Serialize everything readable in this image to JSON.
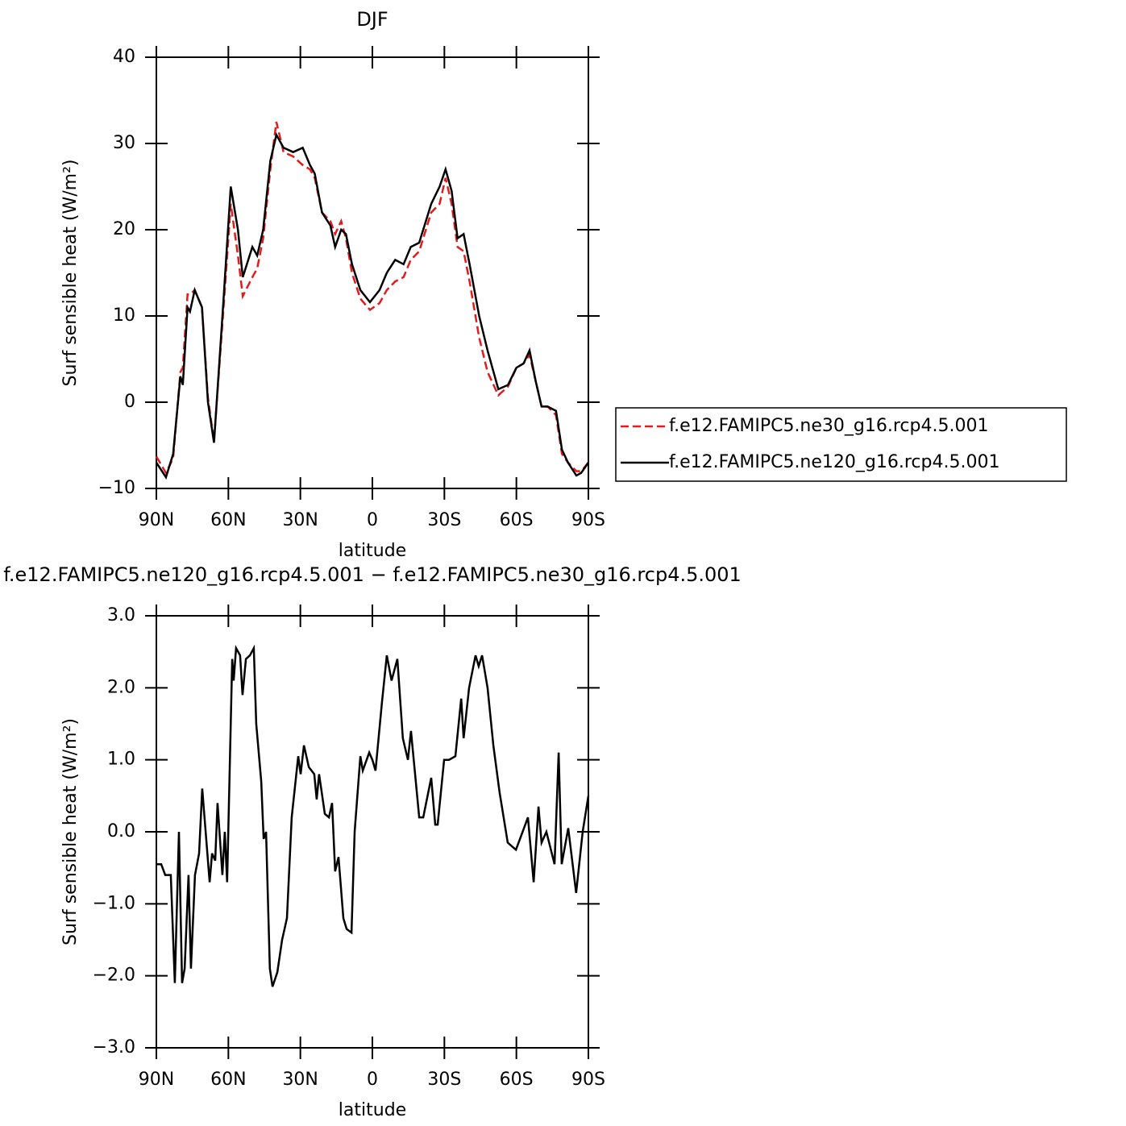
{
  "chart_data": [
    {
      "type": "line",
      "title": "DJF",
      "xlabel": "latitude",
      "ylabel": "Surf sensible heat (W/m²)",
      "x": [
        90,
        86,
        83,
        80,
        79,
        77,
        76,
        74,
        71,
        68.5,
        66,
        62,
        59,
        56,
        54,
        50,
        48,
        45.5,
        42.5,
        40,
        37,
        33,
        29,
        26,
        24,
        21,
        17.5,
        15.5,
        13,
        11,
        8.5,
        5,
        1,
        -3,
        -6,
        -9.5,
        -13,
        -16,
        -19.5,
        -24.5,
        -28,
        -30.5,
        -33,
        -35.5,
        -38,
        -40.5,
        -44.5,
        -48,
        -52.5,
        -56.5,
        -60,
        -63,
        -65.5,
        -68,
        -70.5,
        -73,
        -76.5,
        -79,
        -81.5,
        -85,
        -87,
        -90
      ],
      "series": [
        {
          "name": "f.e12.FAMIPC5.ne30_g16.rcp4.5.001",
          "color": "#e41a1c",
          "dash": true,
          "values": [
            -6.3,
            -8.2,
            -6.5,
            3.5,
            4,
            12.5,
            12.5,
            13,
            11,
            0.5,
            -4.5,
            11,
            23,
            17,
            12.3,
            14.5,
            15.5,
            19,
            27,
            32.5,
            29,
            28.5,
            27.5,
            27,
            26,
            22,
            21,
            19.5,
            21,
            19,
            15,
            12,
            10.7,
            11.5,
            13,
            14,
            14.5,
            16.5,
            17.5,
            22,
            23,
            26,
            23,
            18,
            17.5,
            14,
            7.5,
            3.5,
            0.8,
            1.8,
            4,
            4.5,
            5.5,
            2.5,
            -0.5,
            -0.5,
            -1.5,
            -6,
            -7,
            -8,
            -8,
            -7
          ]
        },
        {
          "name": "f.e12.FAMIPC5.ne120_g16.rcp4.5.001",
          "color": "#000000",
          "dash": false,
          "values": [
            -7,
            -8.7,
            -6,
            3,
            2,
            11,
            10.5,
            13,
            11,
            0,
            -4.7,
            12,
            25,
            20,
            14.5,
            18,
            17,
            20,
            28,
            31,
            29.5,
            29,
            29.5,
            27.5,
            26.5,
            22,
            20.5,
            18,
            20,
            19.5,
            16,
            13,
            11.6,
            13,
            15,
            16.5,
            16,
            18,
            18.5,
            23,
            25,
            27,
            24.5,
            19,
            19.5,
            16,
            10,
            6,
            1.5,
            2,
            4,
            4.5,
            6,
            2.5,
            -0.5,
            -0.5,
            -1,
            -5.5,
            -7,
            -8.5,
            -8.2,
            -7
          ]
        }
      ],
      "xlim": [
        90,
        -90
      ],
      "xticks": [
        {
          "value": 90,
          "label": "90N"
        },
        {
          "value": 60,
          "label": "60N"
        },
        {
          "value": 30,
          "label": "30N"
        },
        0,
        {
          "value": -30,
          "label": "30S"
        },
        {
          "value": -60,
          "label": "60S"
        },
        {
          "value": -90,
          "label": "90S"
        }
      ],
      "ylim": [
        -10,
        40
      ],
      "yticks": [
        {
          "value": -10,
          "label": "−10"
        },
        0,
        10,
        20,
        30,
        40
      ],
      "legend": "right"
    },
    {
      "type": "line",
      "title": "f.e12.FAMIPC5.ne120_g16.rcp4.5.001 − f.e12.FAMIPC5.ne30_g16.rcp4.5.001",
      "xlabel": "latitude",
      "ylabel": "Surf sensible heat (W/m²)",
      "x": [
        90,
        88,
        86.3,
        84,
        82.3,
        80.6,
        79.3,
        78.2,
        76.6,
        75.6,
        73.9,
        72.2,
        70.9,
        67.8,
        66.8,
        65.5,
        64.5,
        62.5,
        61.5,
        60.5,
        58.4,
        57.8,
        56.8,
        55.1,
        54.1,
        52.7,
        51,
        49.4,
        48.4,
        46.3,
        45.3,
        44.3,
        42.7,
        41.6,
        39.6,
        37.6,
        35.6,
        33.6,
        30.9,
        29.9,
        28.5,
        26.5,
        24.2,
        23.2,
        22.2,
        19.8,
        18.1,
        16.8,
        15.5,
        14.1,
        12.1,
        10.7,
        8.7,
        7.4,
        5,
        4,
        1.3,
        0,
        -1.3,
        -4,
        -6,
        -8,
        -10.4,
        -12.7,
        -14.8,
        -16.1,
        -19.5,
        -21.2,
        -24.5,
        -26.2,
        -27.2,
        -29.9,
        -31.9,
        -34.6,
        -37,
        -38,
        -40.3,
        -43,
        -44.3,
        -45.7,
        -48,
        -50.4,
        -53,
        -56.4,
        -59.8,
        -61.5,
        -64.8,
        -67.2,
        -69.2,
        -70.5,
        -72.5,
        -75.9,
        -77.6,
        -78.9,
        -81.6,
        -84.9,
        -87.6,
        -90
      ],
      "series": [
        {
          "color": "#000000",
          "dash": false,
          "values": [
            -0.45,
            -0.45,
            -0.6,
            -0.6,
            -2.1,
            0,
            -2.1,
            -1.9,
            -0.6,
            -1.9,
            -0.6,
            -0.3,
            0.6,
            -0.7,
            -0.3,
            -0.4,
            0.4,
            -0.6,
            0,
            -0.7,
            2.4,
            2.1,
            2.55,
            2.45,
            1.9,
            2.4,
            2.45,
            2.55,
            1.5,
            0.7,
            -0.1,
            0,
            -1.9,
            -2.15,
            -1.95,
            -1.5,
            -1.2,
            0.2,
            1.05,
            0.8,
            1.2,
            0.9,
            0.8,
            0.45,
            0.8,
            0.25,
            0.2,
            0.4,
            -0.55,
            -0.35,
            -1.2,
            -1.35,
            -1.4,
            0,
            1.05,
            0.85,
            1.1,
            1.0,
            0.85,
            1.8,
            2.45,
            2.1,
            2.4,
            1.3,
            1.0,
            1.4,
            0.2,
            0.2,
            0.75,
            0.1,
            0.1,
            1.0,
            1.0,
            1.05,
            1.85,
            1.3,
            2.0,
            2.45,
            2.3,
            2.45,
            2.0,
            1.2,
            0.55,
            -0.15,
            -0.25,
            -0.1,
            0.2,
            -0.7,
            0.35,
            -0.15,
            0,
            -0.45,
            1.1,
            -0.45,
            0.05,
            -0.85,
            0,
            0.5
          ]
        }
      ],
      "xlim": [
        90,
        -90
      ],
      "xticks": [
        {
          "value": 90,
          "label": "90N"
        },
        {
          "value": 60,
          "label": "60N"
        },
        {
          "value": 30,
          "label": "30N"
        },
        0,
        {
          "value": -30,
          "label": "30S"
        },
        {
          "value": -60,
          "label": "60S"
        },
        {
          "value": -90,
          "label": "90S"
        }
      ],
      "ylim": [
        -3,
        3
      ],
      "yticks": [
        {
          "value": -3,
          "label": "−3.0"
        },
        {
          "value": -2,
          "label": "−2.0"
        },
        {
          "value": -1,
          "label": "−1.0"
        },
        {
          "value": 0,
          "label": "0.0"
        },
        {
          "value": 1,
          "label": "1.0"
        },
        {
          "value": 2,
          "label": "2.0"
        },
        {
          "value": 3,
          "label": "3.0"
        }
      ]
    }
  ]
}
